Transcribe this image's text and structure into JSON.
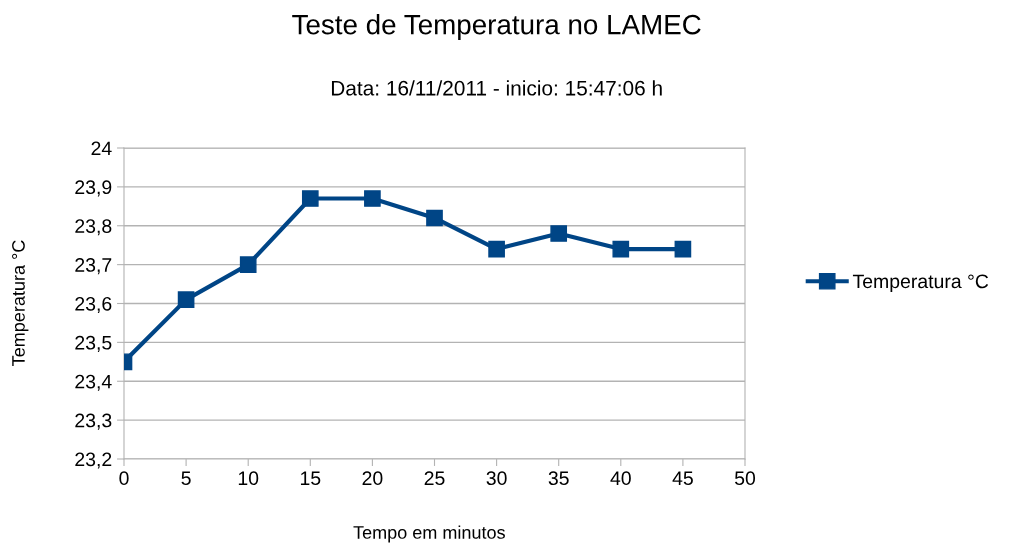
{
  "chart_data": {
    "type": "line",
    "title": "Teste de Temperatura no LAMEC",
    "subtitle": "Data: 16/11/2011 - inicio: 15:47:06 h",
    "xlabel": "Tempo em minutos",
    "ylabel": "Temperatura °C",
    "x": [
      0,
      5,
      10,
      15,
      20,
      25,
      30,
      35,
      40,
      45
    ],
    "series": [
      {
        "name": "Temperatura °C",
        "color": "#004586",
        "values": [
          23.45,
          23.61,
          23.7,
          23.87,
          23.87,
          23.82,
          23.74,
          23.78,
          23.74,
          23.74
        ]
      }
    ],
    "xlim": [
      0,
      50
    ],
    "xticks": [
      0,
      5,
      10,
      15,
      20,
      25,
      30,
      35,
      40,
      45,
      50
    ],
    "ylim": [
      23.2,
      24
    ],
    "yticks": [
      {
        "value": 23.2,
        "label": "23,2"
      },
      {
        "value": 23.3,
        "label": "23,3"
      },
      {
        "value": 23.4,
        "label": "23,4"
      },
      {
        "value": 23.5,
        "label": "23,5"
      },
      {
        "value": 23.6,
        "label": "23,6"
      },
      {
        "value": 23.7,
        "label": "23,7"
      },
      {
        "value": 23.8,
        "label": "23,8"
      },
      {
        "value": 23.9,
        "label": "23,9"
      },
      {
        "value": 24,
        "label": "24"
      }
    ],
    "grid": "y",
    "legend": "right",
    "marker": "square",
    "line_style": "solid"
  }
}
